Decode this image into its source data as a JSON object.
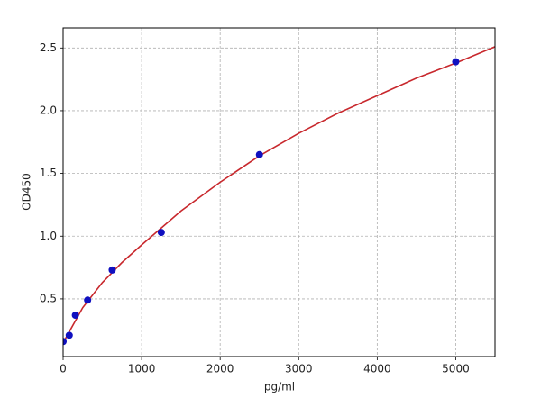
{
  "chart_data": {
    "type": "scatter",
    "xlabel": "pg/ml",
    "ylabel": "OD450",
    "xlim": [
      0,
      5500
    ],
    "ylim": [
      0.04,
      2.66
    ],
    "xticks": [
      0,
      1000,
      2000,
      3000,
      4000,
      5000
    ],
    "yticks": [
      0.5,
      {
        "value": 1,
        "label": "1.0"
      },
      1.5,
      {
        "value": 2,
        "label": "2.0"
      },
      2.5
    ],
    "grid": true,
    "series": [
      {
        "type": "scatter",
        "color": "#1010c0",
        "x": [
          0,
          78,
          156,
          312,
          625,
          1250,
          2500,
          5000
        ],
        "values": [
          0.16,
          0.21,
          0.37,
          0.49,
          0.73,
          1.03,
          1.65,
          2.39
        ]
      },
      {
        "type": "line",
        "color": "#c8282d",
        "x": [
          0,
          250,
          500,
          750,
          1000,
          1500,
          2000,
          2500,
          3000,
          3500,
          4000,
          4500,
          5000,
          5500
        ],
        "values": [
          0.15,
          0.43,
          0.63,
          0.79,
          0.93,
          1.2,
          1.43,
          1.64,
          1.82,
          1.98,
          2.12,
          2.26,
          2.38,
          2.51
        ]
      }
    ]
  }
}
